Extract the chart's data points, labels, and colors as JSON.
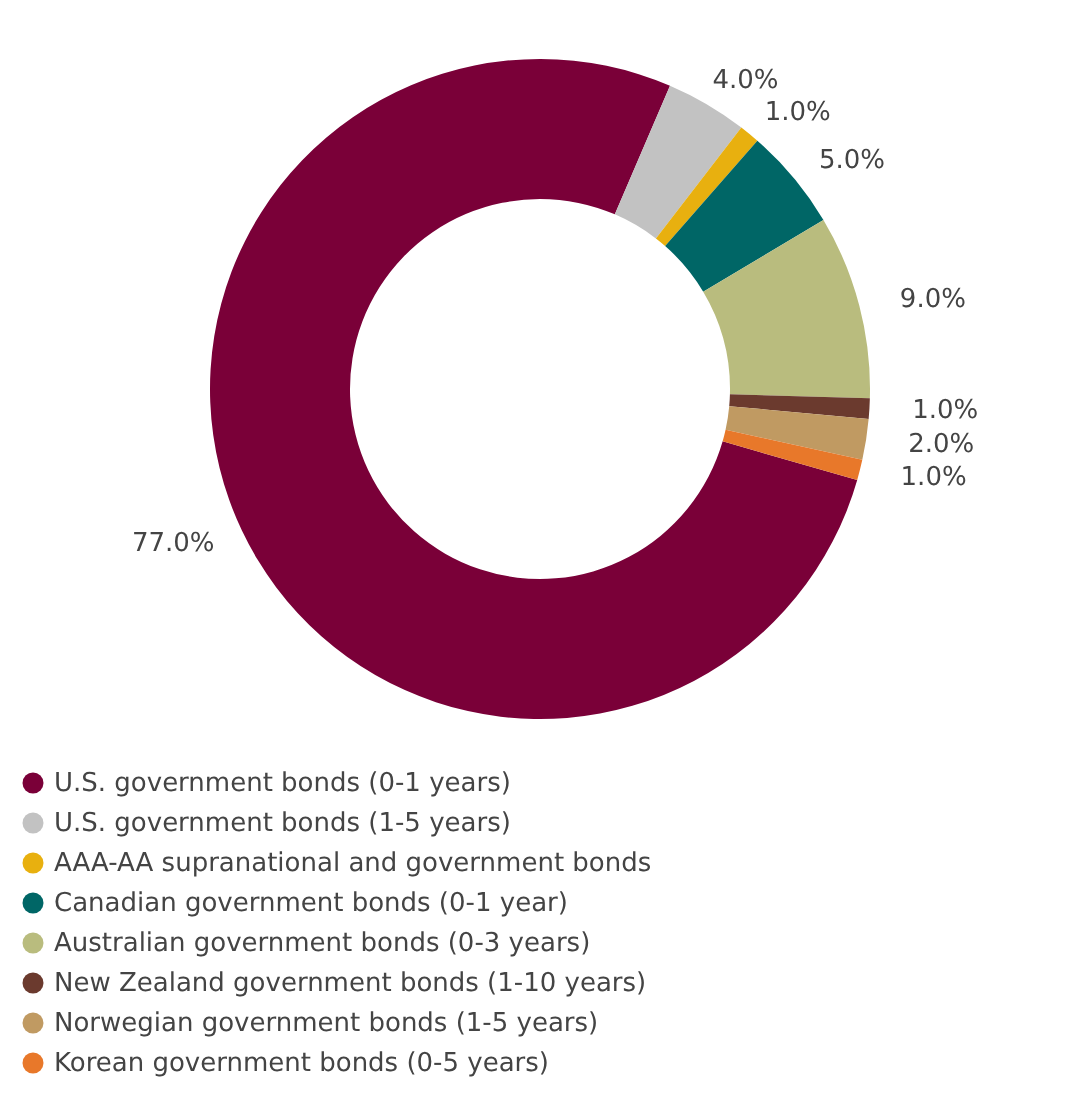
{
  "chart_data": {
    "type": "donut",
    "categories": [
      "U.S. government bonds (0-1 years)",
      "U.S. government bonds (1-5 years)",
      "AAA-AA supranational and government bonds",
      "Canadian government bonds (0-1 year)",
      "Australian government bonds (0-3 years)",
      "New Zealand government bonds (1-10 years)",
      "Norwegian government bonds (1-5 years)",
      "Korean government bonds (0-5 years)"
    ],
    "values": [
      77,
      4,
      1,
      5,
      9,
      1,
      2,
      1
    ],
    "value_labels": [
      "77.0%",
      "4.0%",
      "1.0%",
      "5.0%",
      "9.0%",
      "1.0%",
      "2.0%",
      "1.0%"
    ],
    "colors": [
      "#7a0038",
      "#c2c2c2",
      "#e8b00f",
      "#006666",
      "#b9bc7e",
      "#6b3a2e",
      "#c09a62",
      "#e8782a"
    ],
    "legend": "bottom"
  }
}
